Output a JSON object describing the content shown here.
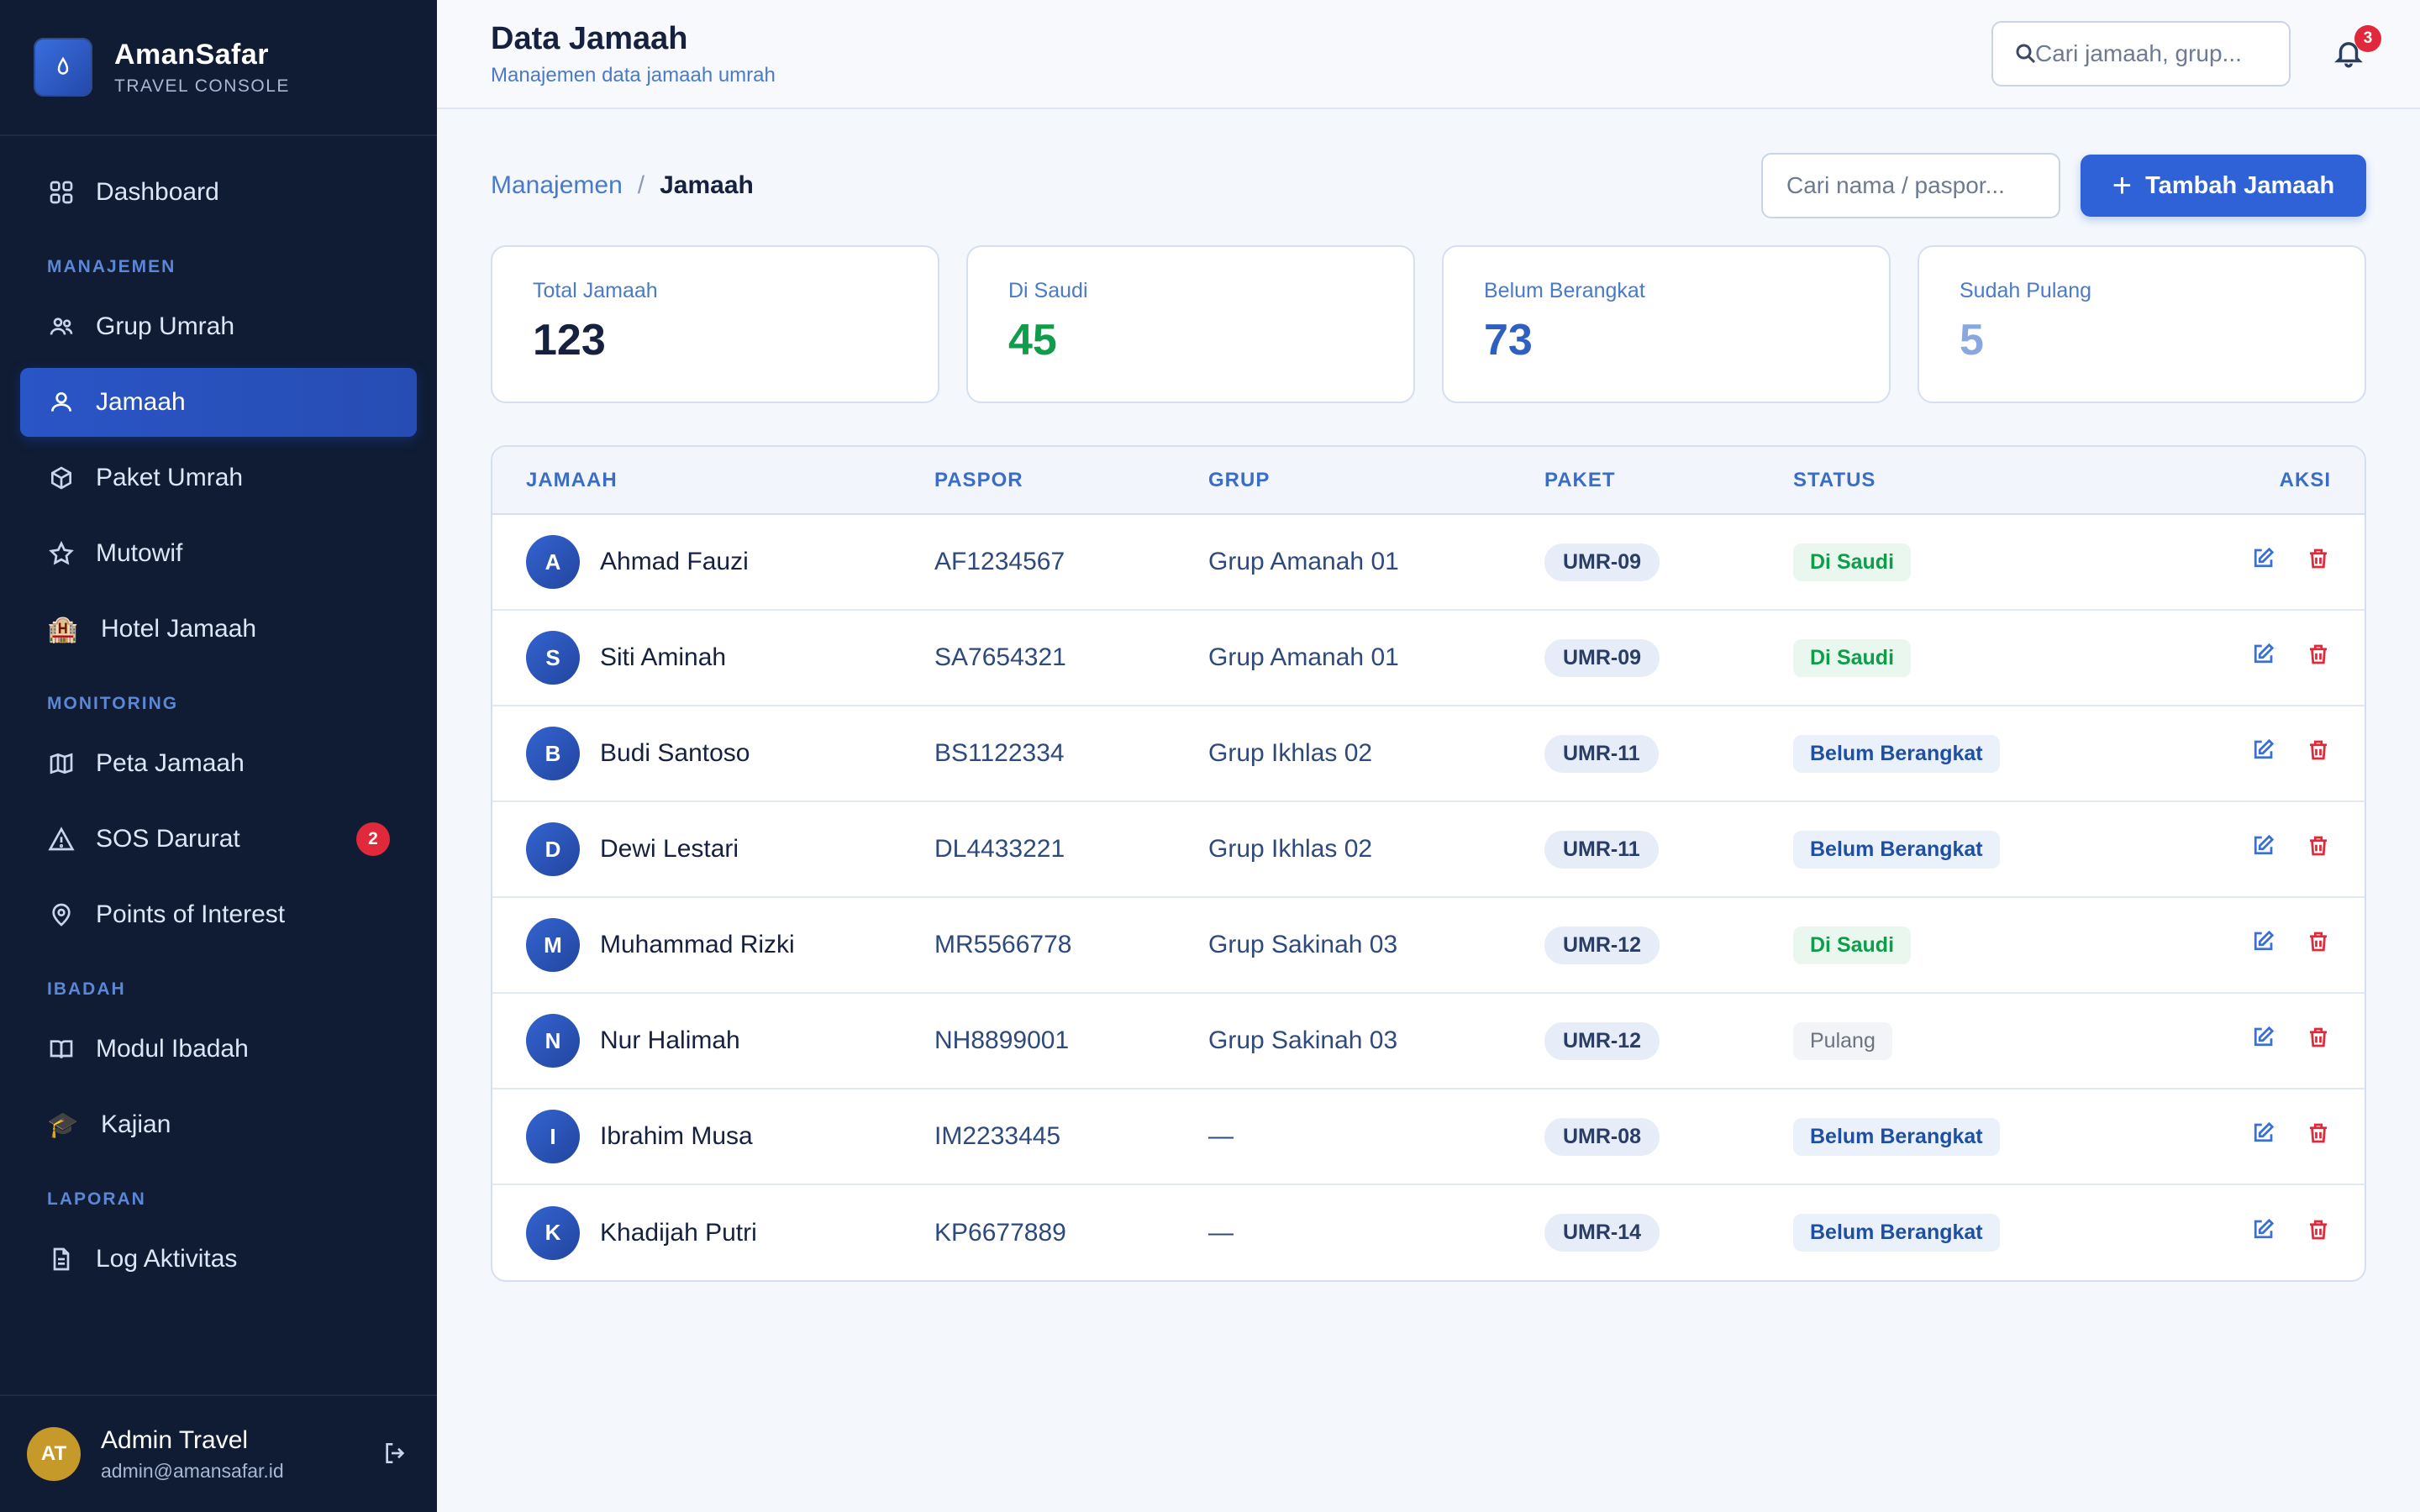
{
  "brand": {
    "name": "AmanSafar",
    "subtitle": "TRAVEL CONSOLE"
  },
  "sidebar": {
    "top_item": {
      "label": "Dashboard",
      "icon": "grid-icon"
    },
    "sections": [
      {
        "title": "MANAJEMEN",
        "items": [
          {
            "label": "Grup Umrah",
            "icon": "users-icon"
          },
          {
            "label": "Jamaah",
            "icon": "user-icon",
            "active": true
          },
          {
            "label": "Paket Umrah",
            "icon": "package-icon"
          },
          {
            "label": "Mutowif",
            "icon": "star-icon"
          },
          {
            "label": "Hotel Jamaah",
            "icon": "hotel-emoji",
            "glyph": "🏨"
          }
        ]
      },
      {
        "title": "MONITORING",
        "items": [
          {
            "label": "Peta Jamaah",
            "icon": "map-icon"
          },
          {
            "label": "SOS Darurat",
            "icon": "alert-icon",
            "badge": "2"
          },
          {
            "label": "Points of Interest",
            "icon": "pin-icon"
          }
        ]
      },
      {
        "title": "IBADAH",
        "items": [
          {
            "label": "Modul Ibadah",
            "icon": "book-icon"
          },
          {
            "label": "Kajian",
            "icon": "graduation-emoji",
            "glyph": "🎓"
          }
        ]
      },
      {
        "title": "LAPORAN",
        "items": [
          {
            "label": "Log Aktivitas",
            "icon": "file-icon"
          }
        ]
      }
    ],
    "user": {
      "initials": "AT",
      "name": "Admin Travel",
      "email": "admin@amansafar.id"
    }
  },
  "header": {
    "title": "Data Jamaah",
    "subtitle": "Manajemen data jamaah umrah",
    "search_placeholder": "Cari jamaah, grup...",
    "notification_count": "3"
  },
  "breadcrumb": {
    "parent": "Manajemen",
    "separator": "/",
    "current": "Jamaah"
  },
  "toolbar": {
    "search_placeholder": "Cari nama / paspor...",
    "add_label": "Tambah Jamaah"
  },
  "stats": [
    {
      "label": "Total Jamaah",
      "value": "123",
      "color": "#15213f"
    },
    {
      "label": "Di Saudi",
      "value": "45",
      "color": "#0f9d4c"
    },
    {
      "label": "Belum Berangkat",
      "value": "73",
      "color": "#2f5fbf"
    },
    {
      "label": "Sudah Pulang",
      "value": "5",
      "color": "#8aa8e0"
    }
  ],
  "table": {
    "headers": {
      "jamaah": "JAMAAH",
      "paspor": "PASPOR",
      "grup": "GRUP",
      "paket": "PAKET",
      "status": "STATUS",
      "aksi": "AKSI"
    },
    "rows": [
      {
        "initial": "A",
        "name": "Ahmad Fauzi",
        "paspor": "AF1234567",
        "grup": "Grup Amanah 01",
        "paket": "UMR-09",
        "status": "Di Saudi",
        "status_type": "saudi"
      },
      {
        "initial": "S",
        "name": "Siti Aminah",
        "paspor": "SA7654321",
        "grup": "Grup Amanah 01",
        "paket": "UMR-09",
        "status": "Di Saudi",
        "status_type": "saudi"
      },
      {
        "initial": "B",
        "name": "Budi Santoso",
        "paspor": "BS1122334",
        "grup": "Grup Ikhlas 02",
        "paket": "UMR-11",
        "status": "Belum Berangkat",
        "status_type": "belum"
      },
      {
        "initial": "D",
        "name": "Dewi Lestari",
        "paspor": "DL4433221",
        "grup": "Grup Ikhlas 02",
        "paket": "UMR-11",
        "status": "Belum Berangkat",
        "status_type": "belum"
      },
      {
        "initial": "M",
        "name": "Muhammad Rizki",
        "paspor": "MR5566778",
        "grup": "Grup Sakinah 03",
        "paket": "UMR-12",
        "status": "Di Saudi",
        "status_type": "saudi"
      },
      {
        "initial": "N",
        "name": "Nur Halimah",
        "paspor": "NH8899001",
        "grup": "Grup Sakinah 03",
        "paket": "UMR-12",
        "status": "Pulang",
        "status_type": "pulang"
      },
      {
        "initial": "I",
        "name": "Ibrahim Musa",
        "paspor": "IM2233445",
        "grup": "—",
        "paket": "UMR-08",
        "status": "Belum Berangkat",
        "status_type": "belum"
      },
      {
        "initial": "K",
        "name": "Khadijah Putri",
        "paspor": "KP6677889",
        "grup": "—",
        "paket": "UMR-14",
        "status": "Belum Berangkat",
        "status_type": "belum"
      }
    ]
  }
}
